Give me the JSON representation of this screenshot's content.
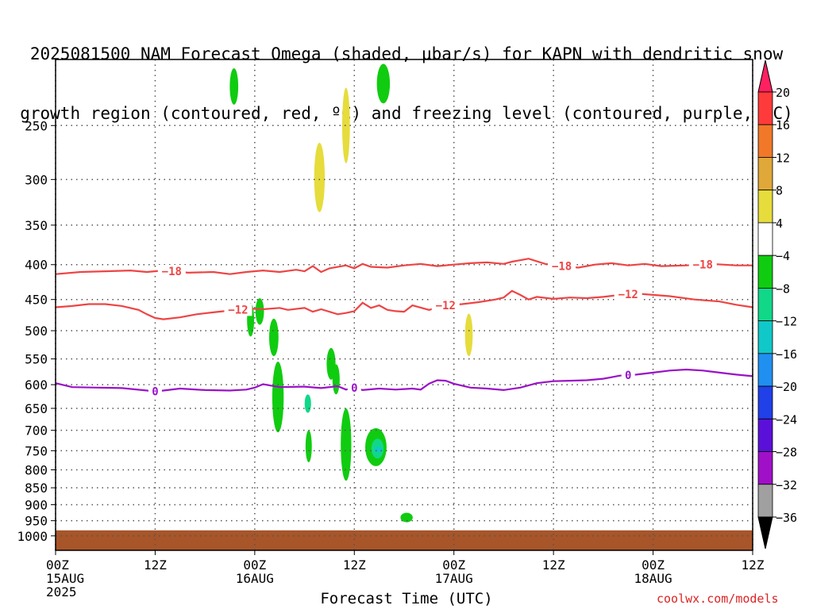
{
  "header": {
    "title_line1": "2025081500 NAM Forecast Omega (shaded, μbar/s) for KAPN with dendritic snow",
    "title_line2": "growth region (contoured, red, ºC) and freezing level (contoured, purple, ºC)"
  },
  "footer": {
    "credit": "coolwx.com/models",
    "xlabel": "Forecast Time (UTC)"
  },
  "chart_data": {
    "type": "contour",
    "x_unit": "hours since 2025-08-15 00Z",
    "xlim": [
      0,
      84
    ],
    "x_ticks": [
      {
        "h": 0,
        "lines": [
          "00Z",
          "15AUG",
          "2025"
        ]
      },
      {
        "h": 12,
        "lines": [
          "12Z"
        ]
      },
      {
        "h": 24,
        "lines": [
          "00Z",
          "16AUG"
        ]
      },
      {
        "h": 36,
        "lines": [
          "12Z"
        ]
      },
      {
        "h": 48,
        "lines": [
          "00Z",
          "17AUG"
        ]
      },
      {
        "h": 60,
        "lines": [
          "12Z"
        ]
      },
      {
        "h": 72,
        "lines": [
          "00Z",
          "18AUG"
        ]
      },
      {
        "h": 84,
        "lines": [
          "12Z"
        ]
      }
    ],
    "y_ticks": [
      250,
      300,
      350,
      400,
      450,
      500,
      550,
      600,
      650,
      700,
      750,
      800,
      850,
      900,
      950,
      1000
    ],
    "ylim": [
      200,
      1050
    ],
    "y_scale": "log-pressure",
    "colorbar": {
      "levels": [
        "20",
        "16",
        "12",
        "8",
        "4",
        "-4",
        "-8",
        "-12",
        "-16",
        "-20",
        "-24",
        "-28",
        "-32",
        "-36"
      ],
      "colors": [
        "#ff2060",
        "#ff3a3a",
        "#f07828",
        "#e0a838",
        "#e6dc3c",
        "#ffffff",
        "#10cc10",
        "#10d888",
        "#10c8c8",
        "#2090f0",
        "#2040e8",
        "#5a10d8",
        "#a010c8",
        "#a0a0a0",
        "#000000"
      ]
    },
    "contours": [
      {
        "name": "-18",
        "color": "#ee4444",
        "label_at": [
          14,
          61,
          78
        ],
        "points": [
          [
            0,
            413
          ],
          [
            3,
            410
          ],
          [
            6,
            409
          ],
          [
            9,
            408
          ],
          [
            11,
            410
          ],
          [
            13,
            408
          ],
          [
            16,
            411
          ],
          [
            19,
            410
          ],
          [
            21,
            413
          ],
          [
            23,
            410
          ],
          [
            25,
            408
          ],
          [
            27,
            410
          ],
          [
            29,
            407
          ],
          [
            30,
            409
          ],
          [
            31,
            402
          ],
          [
            32,
            410
          ],
          [
            33,
            405
          ],
          [
            35,
            401
          ],
          [
            36,
            405
          ],
          [
            37,
            399
          ],
          [
            38,
            403
          ],
          [
            40,
            404
          ],
          [
            42,
            401
          ],
          [
            44,
            399
          ],
          [
            46,
            402
          ],
          [
            48,
            400
          ],
          [
            50,
            398
          ],
          [
            52,
            397
          ],
          [
            54,
            399
          ],
          [
            55,
            396
          ],
          [
            57,
            392
          ],
          [
            59,
            399
          ],
          [
            61,
            402
          ],
          [
            63,
            404
          ],
          [
            65,
            400
          ],
          [
            67,
            398
          ],
          [
            69,
            401
          ],
          [
            71,
            399
          ],
          [
            73,
            402
          ],
          [
            76,
            401
          ],
          [
            79,
            399
          ],
          [
            82,
            401
          ],
          [
            84,
            401
          ]
        ]
      },
      {
        "name": "-12",
        "color": "#ee4444",
        "label_at": [
          22,
          47,
          69
        ],
        "points": [
          [
            0,
            462
          ],
          [
            2,
            460
          ],
          [
            4,
            457
          ],
          [
            6,
            457
          ],
          [
            8,
            460
          ],
          [
            10,
            466
          ],
          [
            11,
            473
          ],
          [
            12,
            479
          ],
          [
            13,
            481
          ],
          [
            15,
            478
          ],
          [
            17,
            473
          ],
          [
            19,
            470
          ],
          [
            21,
            467
          ],
          [
            23,
            464
          ],
          [
            25,
            465
          ],
          [
            27,
            463
          ],
          [
            28,
            466
          ],
          [
            30,
            463
          ],
          [
            31,
            469
          ],
          [
            32,
            465
          ],
          [
            34,
            473
          ],
          [
            35,
            471
          ],
          [
            36,
            468
          ],
          [
            37,
            455
          ],
          [
            38,
            463
          ],
          [
            39,
            459
          ],
          [
            40,
            466
          ],
          [
            41,
            468
          ],
          [
            42,
            469
          ],
          [
            43,
            459
          ],
          [
            45,
            466
          ],
          [
            47,
            459
          ],
          [
            49,
            457
          ],
          [
            51,
            454
          ],
          [
            53,
            450
          ],
          [
            54,
            447
          ],
          [
            55,
            437
          ],
          [
            56,
            443
          ],
          [
            57,
            450
          ],
          [
            58,
            446
          ],
          [
            60,
            449
          ],
          [
            62,
            447
          ],
          [
            64,
            448
          ],
          [
            66,
            446
          ],
          [
            68,
            443
          ],
          [
            70,
            441
          ],
          [
            72,
            443
          ],
          [
            74,
            445
          ],
          [
            77,
            450
          ],
          [
            80,
            453
          ],
          [
            82,
            458
          ],
          [
            84,
            462
          ]
        ]
      },
      {
        "name": "0",
        "color": "#9a10c8",
        "label_at": [
          12,
          36,
          69
        ],
        "points": [
          [
            0,
            597
          ],
          [
            2,
            605
          ],
          [
            5,
            606
          ],
          [
            8,
            607
          ],
          [
            11,
            612
          ],
          [
            12,
            614
          ],
          [
            13,
            612
          ],
          [
            15,
            608
          ],
          [
            18,
            611
          ],
          [
            21,
            612
          ],
          [
            23,
            610
          ],
          [
            24,
            606
          ],
          [
            25,
            599
          ],
          [
            27,
            605
          ],
          [
            30,
            604
          ],
          [
            32,
            607
          ],
          [
            34,
            603
          ],
          [
            35,
            610
          ],
          [
            36,
            606
          ],
          [
            37,
            611
          ],
          [
            39,
            608
          ],
          [
            41,
            610
          ],
          [
            43,
            608
          ],
          [
            44,
            610
          ],
          [
            45,
            598
          ],
          [
            46,
            591
          ],
          [
            47,
            592
          ],
          [
            48,
            598
          ],
          [
            50,
            606
          ],
          [
            52,
            608
          ],
          [
            54,
            611
          ],
          [
            56,
            606
          ],
          [
            58,
            597
          ],
          [
            60,
            593
          ],
          [
            62,
            592
          ],
          [
            64,
            591
          ],
          [
            66,
            588
          ],
          [
            68,
            582
          ],
          [
            70,
            580
          ],
          [
            72,
            576
          ],
          [
            74,
            572
          ],
          [
            76,
            570
          ],
          [
            78,
            572
          ],
          [
            80,
            576
          ],
          [
            82,
            580
          ],
          [
            84,
            583
          ]
        ]
      }
    ],
    "terrain": {
      "color": "#a8552a",
      "top_hpa": 1000
    }
  }
}
